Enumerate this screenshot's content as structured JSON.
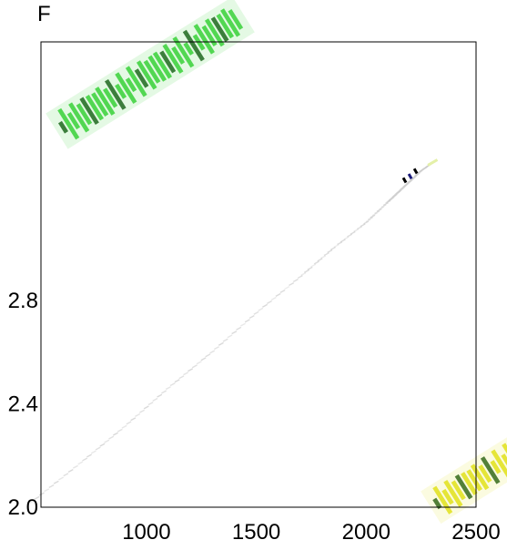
{
  "panel_label": "F",
  "chart_data": {
    "type": "scatter",
    "title": "",
    "xlabel": "",
    "ylabel": "",
    "xlim": [
      520,
      2500
    ],
    "ylim": [
      2.0,
      3.8
    ],
    "x_ticks": [
      {
        "value": 1000,
        "label": "1000"
      },
      {
        "value": 1500,
        "label": "1500"
      },
      {
        "value": 2000,
        "label": "2000"
      },
      {
        "value": 2500,
        "label": "2500"
      }
    ],
    "y_ticks": [
      {
        "value": 2.0,
        "label": "2.0"
      },
      {
        "value": 2.4,
        "label": "2.4"
      },
      {
        "value": 2.8,
        "label": "2.8"
      }
    ],
    "series": [
      {
        "x": [
          480,
          700,
          900,
          1100,
          1300,
          1500,
          1700,
          1850,
          2000,
          2100,
          2150,
          2200,
          2250,
          2300
        ],
        "y": [
          2.02,
          2.17,
          2.31,
          2.46,
          2.6,
          2.75,
          2.89,
          3.0,
          3.1,
          3.18,
          3.22,
          3.26,
          3.3,
          3.33
        ],
        "color": "#c9c9c9"
      }
    ],
    "highlight_points": [
      {
        "x": 2175,
        "y": 3.265,
        "color": "#000000"
      },
      {
        "x": 2200,
        "y": 3.28,
        "color": "#1a1a7a"
      },
      {
        "x": 2225,
        "y": 3.3,
        "color": "#000000"
      }
    ],
    "watermarks": [
      {
        "color": "#22cc22"
      },
      {
        "color": "#dddd00"
      }
    ],
    "grid": false,
    "legend": "none"
  }
}
